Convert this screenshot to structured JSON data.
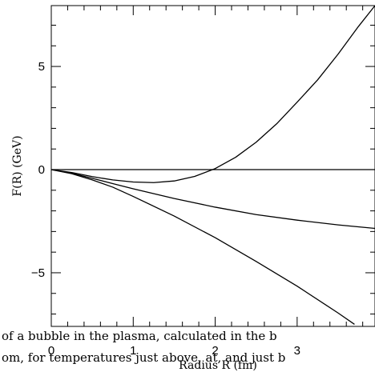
{
  "chart_data": {
    "type": "line",
    "title": "",
    "xlabel": "Radius R (fm)",
    "ylabel": "F(R) (GeV)",
    "xlim": [
      0,
      3.95
    ],
    "ylim": [
      -7.6,
      7.95
    ],
    "x_ticks": [
      0,
      1,
      2,
      3
    ],
    "x_tick_labels": [
      "0",
      "1",
      "2",
      "3"
    ],
    "y_ticks": [
      5,
      0,
      -5
    ],
    "y_tick_labels": [
      "5",
      "0",
      "−5"
    ],
    "grid": false,
    "series": [
      {
        "x": [
          0,
          0.25,
          0.5,
          0.75,
          1.0,
          1.25,
          1.5,
          1.75,
          2.0,
          2.25,
          2.5,
          2.75,
          3.0,
          3.25,
          3.5,
          3.75,
          3.95
        ],
        "values": [
          0,
          -0.14,
          -0.34,
          -0.5,
          -0.6,
          -0.63,
          -0.55,
          -0.33,
          0.05,
          0.6,
          1.33,
          2.22,
          3.27,
          4.35,
          5.6,
          6.95,
          7.95
        ]
      },
      {
        "x": [
          0,
          3.95
        ],
        "values": [
          0,
          0
        ]
      },
      {
        "x": [
          0,
          0.25,
          0.5,
          0.75,
          1.0,
          1.5,
          2.0,
          2.5,
          3.0,
          3.5,
          3.95
        ],
        "values": [
          0,
          -0.18,
          -0.42,
          -0.68,
          -0.93,
          -1.4,
          -1.82,
          -2.18,
          -2.45,
          -2.68,
          -2.85
        ]
      },
      {
        "x": [
          0,
          0.25,
          0.5,
          0.75,
          1.0,
          1.5,
          2.0,
          2.5,
          3.0,
          3.5,
          3.7
        ],
        "values": [
          0,
          -0.2,
          -0.5,
          -0.85,
          -1.3,
          -2.25,
          -3.3,
          -4.45,
          -5.65,
          -6.95,
          -7.5
        ]
      }
    ]
  },
  "caption": {
    "line1": "of a bubble in the plasma, calculated in the b",
    "line2": "om, for temperatures just above, at, and just b"
  }
}
